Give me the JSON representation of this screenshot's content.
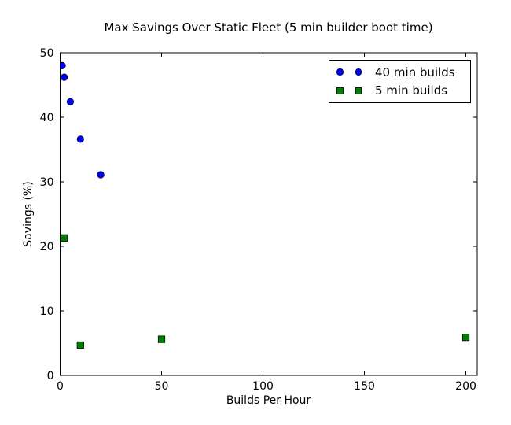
{
  "chart_data": {
    "type": "scatter",
    "title": "Max Savings Over Static Fleet (5 min builder boot time)",
    "xlabel": "Builds Per Hour",
    "ylabel": "Savings (%)",
    "xlim": [
      0,
      205.6
    ],
    "ylim": [
      0,
      50
    ],
    "xticks": [
      0,
      50,
      100,
      150,
      200
    ],
    "yticks": [
      0,
      10,
      20,
      30,
      40,
      50
    ],
    "grid": false,
    "legend_position": "upper right",
    "axis_color": "#000000",
    "background_color": "#ffffff",
    "series": [
      {
        "name": "40 min builds",
        "marker": "circle",
        "color": "#0000ff",
        "edge_color": "#000000",
        "points": [
          [
            1,
            48.0
          ],
          [
            2,
            46.2
          ],
          [
            5,
            42.4
          ],
          [
            10,
            36.6
          ],
          [
            20,
            31.1
          ]
        ]
      },
      {
        "name": "5 min builds",
        "marker": "square",
        "color": "#008000",
        "edge_color": "#000000",
        "points": [
          [
            2,
            21.3
          ],
          [
            10,
            4.7
          ],
          [
            50,
            5.6
          ],
          [
            200,
            5.9
          ]
        ]
      }
    ]
  }
}
